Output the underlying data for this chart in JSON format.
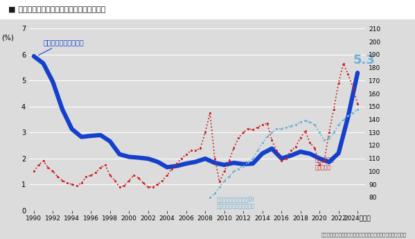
{
  "title": "■ 人出不足・インフレ経済を見通した㛈上げ",
  "source": "（出所）厨生労働省「民間主要企業春季㛈上げ要求・妥結状況」",
  "ylabel_left": "(%)",
  "xlim": [
    1989.5,
    2024.8
  ],
  "ylim_left": [
    0,
    7
  ],
  "ylim_right": [
    70,
    210
  ],
  "bg_color": "#dcdcdc",
  "label_wage": "主要企業春季㛈上げ率",
  "label_di": "労働者過不足状況判断DI\n（常用労働者）（右目盛）",
  "label_import": "輸入物価指数\n（右目盛）",
  "annotation_53": "5.3",
  "color_wage": "#1440cc",
  "color_di": "#6ab0d8",
  "color_import": "#cc2222",
  "years_wage": [
    1990,
    1991,
    1992,
    1993,
    1994,
    1995,
    1996,
    1997,
    1998,
    1999,
    2000,
    2001,
    2002,
    2003,
    2004,
    2005,
    2006,
    2007,
    2008,
    2009,
    2010,
    2011,
    2012,
    2013,
    2014,
    2015,
    2016,
    2017,
    2018,
    2019,
    2020,
    2021,
    2022,
    2023,
    2024
  ],
  "values_wage": [
    5.94,
    5.66,
    4.95,
    3.89,
    3.13,
    2.83,
    2.87,
    2.9,
    2.66,
    2.16,
    2.06,
    2.03,
    1.99,
    1.87,
    1.66,
    1.71,
    1.8,
    1.87,
    1.99,
    1.83,
    1.75,
    1.83,
    1.78,
    1.8,
    2.19,
    2.38,
    2.0,
    2.11,
    2.26,
    2.18,
    2.0,
    1.86,
    2.2,
    3.6,
    5.3
  ],
  "years_di": [
    2008.5,
    2009,
    2009.5,
    2010,
    2010.5,
    2011,
    2011.5,
    2012,
    2012.5,
    2013,
    2013.5,
    2014,
    2014.5,
    2015,
    2015.5,
    2016,
    2016.5,
    2017,
    2017.5,
    2018,
    2018.5,
    2019,
    2019.5,
    2020,
    2020.5,
    2021,
    2021.5,
    2022,
    2022.5,
    2023,
    2023.5,
    2024
  ],
  "values_di": [
    80,
    83,
    88,
    93,
    96,
    100,
    102,
    104,
    107,
    110,
    116,
    122,
    127,
    130,
    133,
    133,
    134,
    135,
    136,
    138,
    139,
    138,
    136,
    130,
    124,
    126,
    130,
    136,
    140,
    143,
    145,
    148
  ],
  "years_import": [
    1990,
    1990.5,
    1991,
    1991.5,
    1992,
    1992.5,
    1993,
    1993.5,
    1994,
    1994.5,
    1995,
    1995.5,
    1996,
    1996.5,
    1997,
    1997.5,
    1998,
    1998.5,
    1999,
    1999.5,
    2000,
    2000.5,
    2001,
    2001.5,
    2002,
    2002.5,
    2003,
    2003.5,
    2004,
    2004.5,
    2005,
    2005.5,
    2006,
    2006.5,
    2007,
    2007.5,
    2008,
    2008.5,
    2009,
    2009.5,
    2010,
    2010.5,
    2011,
    2011.5,
    2012,
    2012.5,
    2013,
    2013.5,
    2014,
    2014.5,
    2015,
    2015.5,
    2016,
    2016.5,
    2017,
    2017.5,
    2018,
    2018.5,
    2019,
    2019.5,
    2020,
    2020.5,
    2021,
    2021.5,
    2022,
    2022.5,
    2023,
    2023.5,
    2024
  ],
  "values_import": [
    100,
    105,
    108,
    103,
    100,
    96,
    93,
    91,
    90,
    89,
    91,
    96,
    97,
    99,
    103,
    105,
    97,
    93,
    88,
    89,
    93,
    97,
    95,
    91,
    88,
    88,
    90,
    93,
    97,
    102,
    106,
    110,
    113,
    116,
    116,
    118,
    130,
    145,
    110,
    92,
    100,
    108,
    118,
    126,
    130,
    133,
    132,
    134,
    136,
    137,
    124,
    116,
    108,
    110,
    116,
    119,
    126,
    131,
    122,
    118,
    105,
    108,
    130,
    148,
    168,
    183,
    175,
    165,
    152
  ],
  "xticks": [
    1990,
    1992,
    1994,
    1996,
    1998,
    2000,
    2002,
    2004,
    2006,
    2008,
    2010,
    2012,
    2014,
    2016,
    2018,
    2020,
    2022,
    2024
  ],
  "yticks_left": [
    0,
    1,
    2,
    3,
    4,
    5,
    6,
    7
  ],
  "yticks_right": [
    80,
    90,
    100,
    110,
    120,
    130,
    140,
    150,
    160,
    170,
    180,
    190,
    200,
    210
  ]
}
